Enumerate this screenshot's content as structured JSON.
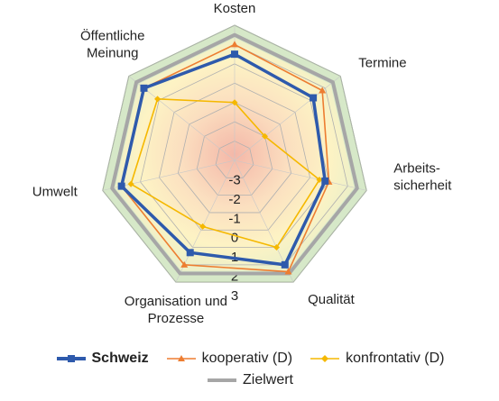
{
  "chart_data": {
    "type": "radar",
    "categories": [
      "Kosten",
      "Termine",
      "Arbeits-\nsicherheit",
      "Qualität",
      "Organisation und\nProzesse",
      "Umwelt",
      "Öffentliche\nMeinung"
    ],
    "rlim": [
      -4,
      3
    ],
    "ticks": [
      "-3",
      "-2",
      "-1",
      "0",
      "1",
      "2",
      "3"
    ],
    "series": [
      {
        "name": "Schweiz",
        "color": "#2e5aac",
        "marker": "square",
        "values": [
          1.5,
          1.2,
          0.8,
          2.0,
          1.3,
          2.0,
          2.0
        ]
      },
      {
        "name": "kooperativ (D)",
        "color": "#ed7d31",
        "marker": "triangle",
        "values": [
          2.0,
          1.8,
          1.0,
          2.4,
          2.0,
          2.0,
          2.0
        ]
      },
      {
        "name": "konfrontativ (D)",
        "color": "#f5b800",
        "marker": "diamond",
        "values": [
          -1.0,
          -2.0,
          0.5,
          1.0,
          -0.2,
          1.5,
          1.1
        ]
      },
      {
        "name": "Zielwert",
        "color": "#a6a6a6",
        "marker": "none",
        "values": [
          2.5,
          2.5,
          2.5,
          2.5,
          2.5,
          2.5,
          2.5
        ]
      }
    ],
    "grid": true,
    "legend": "bottom"
  }
}
